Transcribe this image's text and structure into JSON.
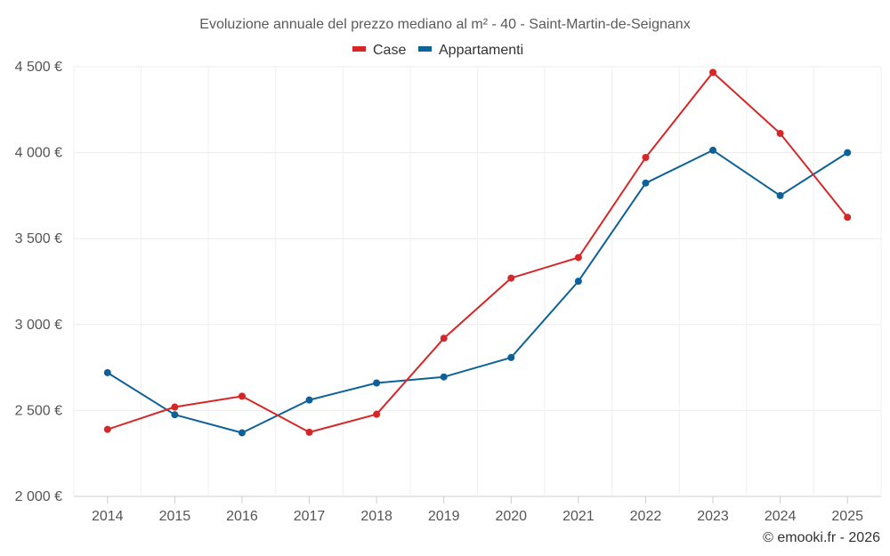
{
  "chart_data": {
    "type": "line",
    "title": "Evoluzione annuale del prezzo mediano al m² - 40 - Saint-Martin-de-Seignanx",
    "categories": [
      "2014",
      "2015",
      "2016",
      "2017",
      "2018",
      "2019",
      "2020",
      "2021",
      "2022",
      "2023",
      "2024",
      "2025"
    ],
    "series": [
      {
        "name": "Case",
        "color": "#d62728",
        "values": [
          2390,
          2520,
          2583,
          2373,
          2478,
          2920,
          3270,
          3390,
          3972,
          4467,
          4112,
          3624
        ]
      },
      {
        "name": "Appartamenti",
        "color": "#0d6199",
        "values": [
          2720,
          2475,
          2370,
          2561,
          2660,
          2695,
          2808,
          3252,
          3823,
          4014,
          3750,
          4000
        ]
      }
    ],
    "ylim": [
      2000,
      4500
    ],
    "yticks": [
      {
        "value": 2000,
        "label": "2 000 €"
      },
      {
        "value": 2500,
        "label": "2 500 €"
      },
      {
        "value": 3000,
        "label": "3 000 €"
      },
      {
        "value": 3500,
        "label": "3 500 €"
      },
      {
        "value": 4000,
        "label": "4 000 €"
      },
      {
        "value": 4500,
        "label": "4 500 €"
      }
    ],
    "xlabel": "",
    "ylabel": "",
    "grid": true,
    "legend": "top-center",
    "credit": "© emooki.fr - 2026"
  }
}
